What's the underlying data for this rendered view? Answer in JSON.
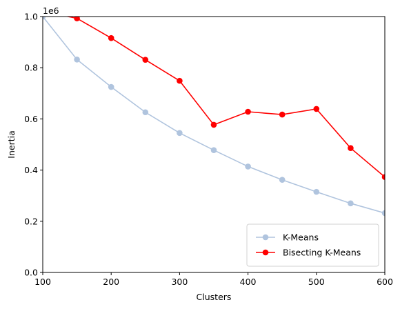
{
  "chart_data": {
    "type": "line",
    "xlabel": "Clusters",
    "ylabel": "Inertia",
    "y_offset_text": "1e6",
    "xlim": [
      100,
      600
    ],
    "ylim": [
      0,
      1.0
    ],
    "xticks": [
      "100",
      "200",
      "300",
      "400",
      "500",
      "600"
    ],
    "yticks": [
      "0.0",
      "0.2",
      "0.4",
      "0.6",
      "0.8",
      "1.0"
    ],
    "grid": false,
    "legend_position": "lower-right",
    "x": [
      100,
      150,
      200,
      250,
      300,
      350,
      400,
      450,
      500,
      550,
      600
    ],
    "series": [
      {
        "name": "K-Means",
        "color": "#b0c4de",
        "marker": "circle",
        "values": [
          1.0,
          0.832,
          0.725,
          0.626,
          0.545,
          0.478,
          0.414,
          0.362,
          0.315,
          0.27,
          0.232
        ]
      },
      {
        "name": "Bisecting K-Means",
        "color": "#ff0000",
        "marker": "circle",
        "values": [
          1.02,
          0.993,
          0.916,
          0.831,
          0.749,
          0.577,
          0.628,
          0.617,
          0.639,
          0.486,
          0.373
        ]
      }
    ]
  }
}
